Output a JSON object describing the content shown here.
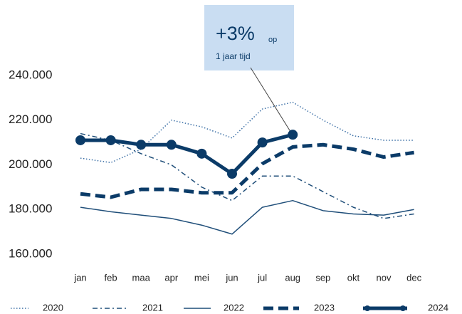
{
  "chart_data": {
    "type": "line",
    "categories": [
      "jan",
      "feb",
      "maa",
      "apr",
      "mei",
      "jun",
      "jul",
      "aug",
      "sep",
      "okt",
      "nov",
      "dec"
    ],
    "series": [
      {
        "name": "2020",
        "color": "#3a6ea5",
        "dash": "dotted",
        "values": [
          203000,
          201000,
          207000,
          220000,
          217000,
          212000,
          225000,
          228000,
          220000,
          213000,
          211000,
          211000
        ]
      },
      {
        "name": "2021",
        "color": "#1f4e79",
        "dash": "dashdot",
        "values": [
          214000,
          211000,
          205000,
          200000,
          190000,
          184000,
          195000,
          195000,
          188000,
          181000,
          176000,
          178000
        ]
      },
      {
        "name": "2022",
        "color": "#1f4e79",
        "dash": "solid",
        "values": [
          181000,
          179000,
          177500,
          176000,
          173000,
          169000,
          181000,
          184000,
          179500,
          178000,
          177500,
          180000
        ]
      },
      {
        "name": "2023",
        "color": "#0b3b68",
        "dash": "dashed",
        "values": [
          187000,
          185500,
          189000,
          189000,
          187500,
          187500,
          200500,
          208000,
          209000,
          207000,
          203500,
          205500
        ]
      },
      {
        "name": "2024",
        "color": "#0b3b68",
        "dash": "solid",
        "marker": "circle",
        "values": [
          211000,
          211000,
          209000,
          209000,
          205000,
          196000,
          210000,
          213500,
          null,
          null,
          null,
          null
        ]
      }
    ],
    "ylim": [
      160000,
      240000
    ],
    "yticks": [
      {
        "value": 160000,
        "label": "160.000"
      },
      {
        "value": 180000,
        "label": "180.000"
      },
      {
        "value": 200000,
        "label": "200.000"
      },
      {
        "value": 220000,
        "label": "220.000"
      },
      {
        "value": 240000,
        "label": "240.000"
      }
    ],
    "grid": false,
    "legend": "bottom",
    "annotation": {
      "text": "+3%",
      "suffix": "op",
      "subtext": "1 jaar tijd"
    }
  }
}
